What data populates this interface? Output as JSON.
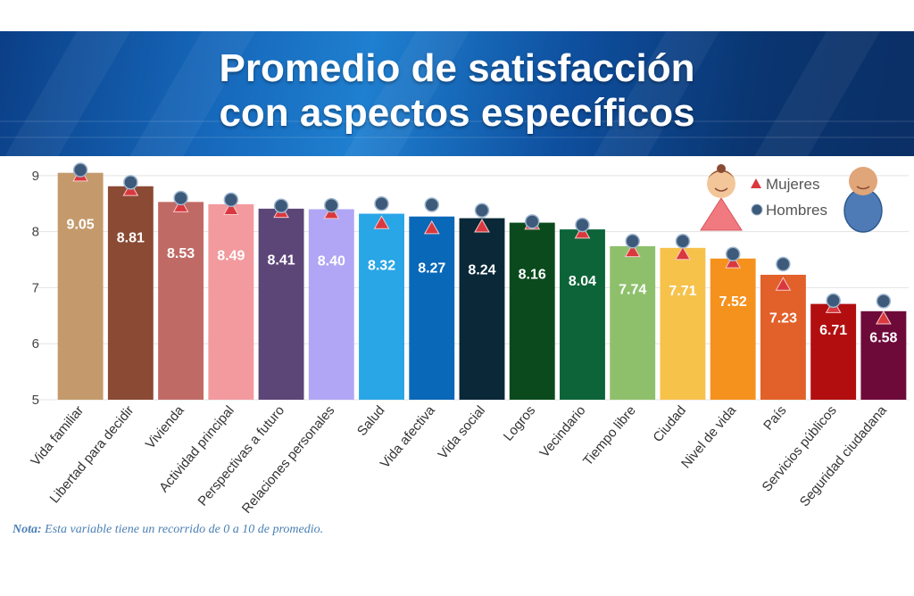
{
  "title_line1": "Promedio de satisfacción",
  "title_line2": "con aspectos específicos",
  "note": {
    "label": "Nota:",
    "text": " Esta variable tiene un recorrido de 0 a 10 de promedio."
  },
  "chart_data": {
    "type": "bar",
    "title": "Promedio de satisfacción con aspectos específicos",
    "ylim": [
      5,
      9.3
    ],
    "yticks": [
      5,
      6,
      7,
      8,
      9
    ],
    "grid": true,
    "legend_position": "top-right",
    "categories": [
      "Vida familiar",
      "Libertad para decidir",
      "Vivienda",
      "Actividad principal",
      "Perspectivas a futuro",
      "Relaciones personales",
      "Salud",
      "Vida afectiva",
      "Vida social",
      "Logros",
      "Vecindario",
      "Tiempo libre",
      "Ciudad",
      "Nivel de vida",
      "País",
      "Servicios públicos",
      "Seguridad ciudadana"
    ],
    "values": [
      9.05,
      8.81,
      8.53,
      8.49,
      8.41,
      8.4,
      8.32,
      8.27,
      8.24,
      8.16,
      8.04,
      7.74,
      7.71,
      7.52,
      7.23,
      6.71,
      6.58
    ],
    "value_labels": [
      "9.05",
      "8.81",
      "8.53",
      "8.49",
      "8.41",
      "8.40",
      "8.32",
      "8.27",
      "8.24",
      "8.16",
      "8.04",
      "7.74",
      "7.71",
      "7.52",
      "7.23",
      "6.71",
      "6.58"
    ],
    "bar_colors": [
      "#c49a6c",
      "#8b4a34",
      "#c06a66",
      "#f29a9e",
      "#5c4678",
      "#b0a6f5",
      "#29a6e6",
      "#0a68b8",
      "#0a2838",
      "#0b4a1d",
      "#0c6438",
      "#8ec06c",
      "#f6c24a",
      "#f5921e",
      "#e2602a",
      "#b20e10",
      "#6e0a3a"
    ],
    "series": [
      {
        "name": "Mujeres",
        "marker": "triangle",
        "color": "#d9383e",
        "values": [
          9.0,
          8.74,
          8.45,
          8.4,
          8.35,
          8.33,
          8.15,
          8.06,
          8.09,
          8.14,
          7.98,
          7.65,
          7.6,
          7.45,
          7.05,
          6.65,
          6.45
        ]
      },
      {
        "name": "Hombres",
        "marker": "circle",
        "color": "#3d5a7a",
        "values": [
          9.1,
          8.88,
          8.6,
          8.57,
          8.46,
          8.47,
          8.5,
          8.48,
          8.38,
          8.18,
          8.12,
          7.83,
          7.83,
          7.6,
          7.42,
          6.77,
          6.76
        ]
      }
    ]
  }
}
